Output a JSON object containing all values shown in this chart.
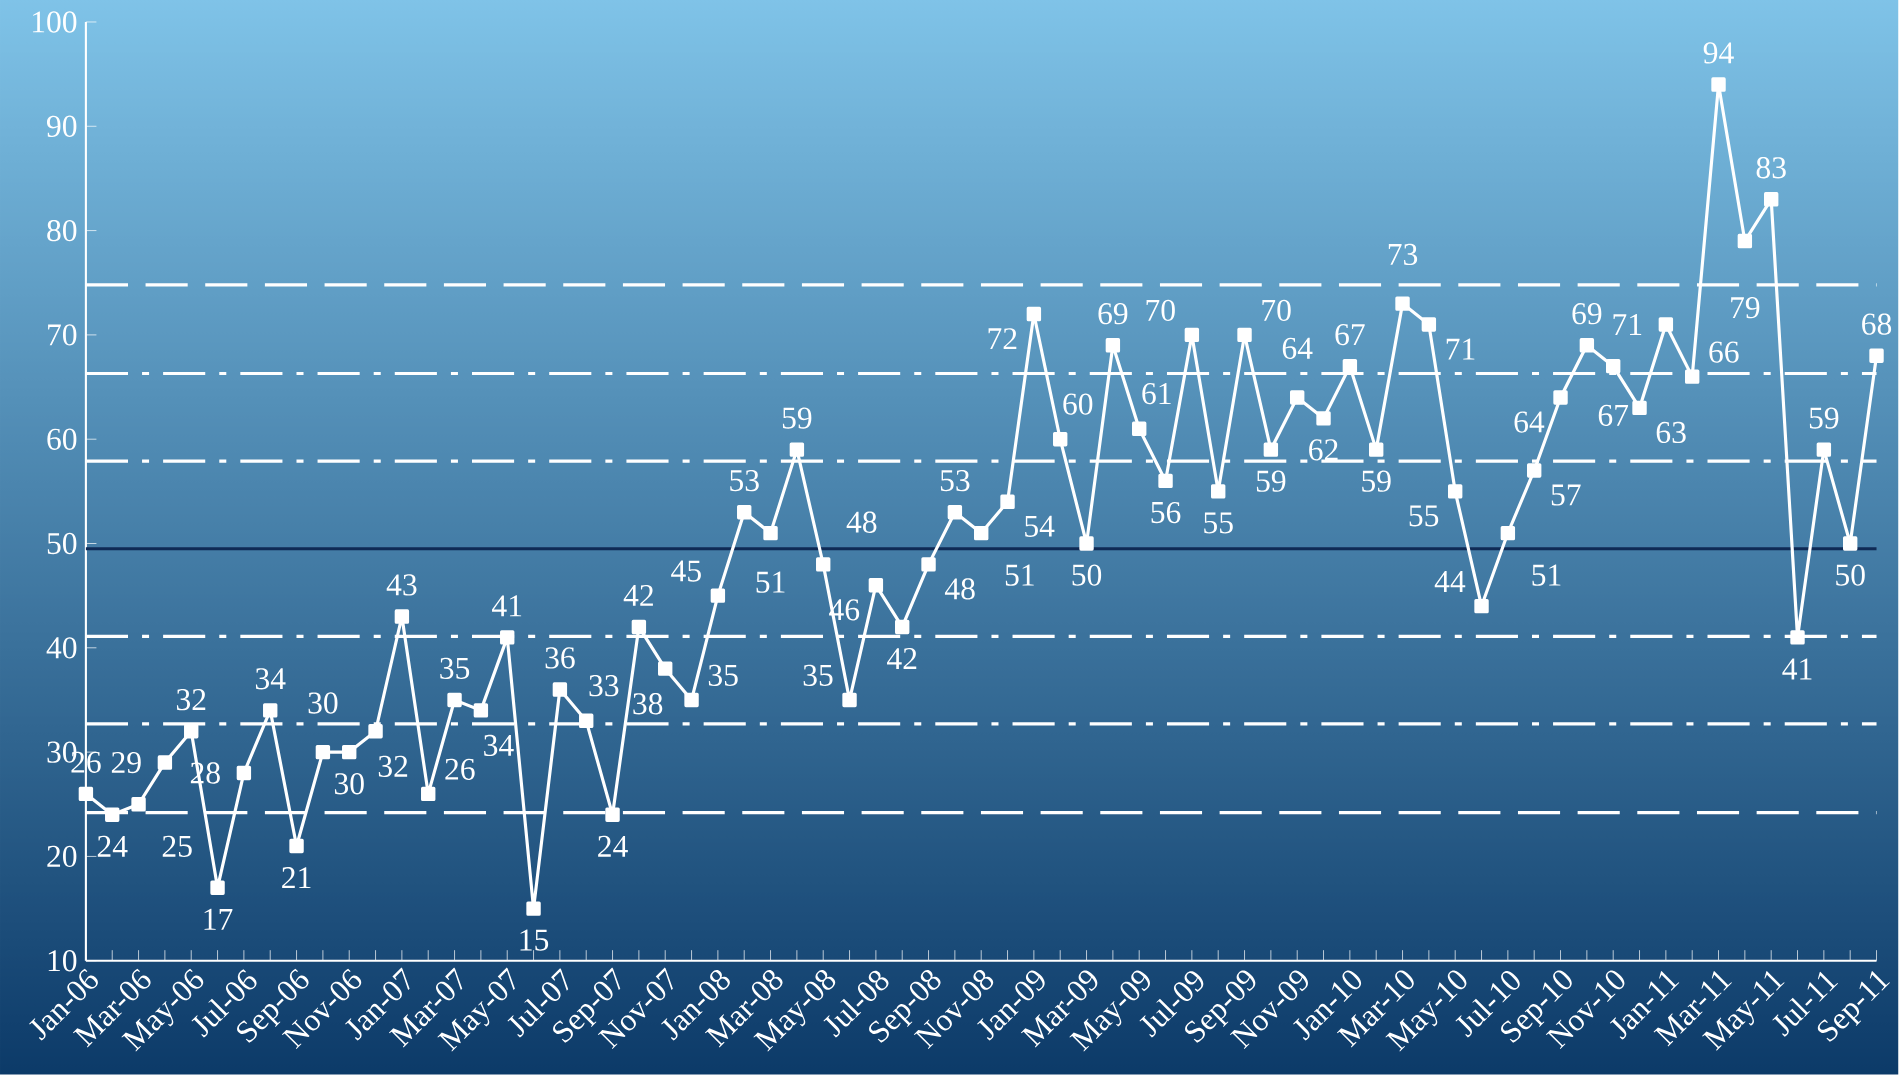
{
  "chart_data": {
    "type": "line",
    "categories": [
      "Jan-06",
      null,
      "Mar-06",
      null,
      "May-06",
      null,
      "Jul-06",
      null,
      "Sep-06",
      null,
      "Nov-06",
      null,
      "Jan-07",
      null,
      "Mar-07",
      null,
      "May-07",
      null,
      "Jul-07",
      null,
      "Sep-07",
      null,
      "Nov-07",
      null,
      "Jan-08",
      null,
      "Mar-08",
      null,
      "May-08",
      null,
      "Jul-08",
      null,
      "Sep-08",
      null,
      "Nov-08",
      null,
      "Jan-09",
      null,
      "Mar-09",
      null,
      "May-09",
      null,
      "Jul-09",
      null,
      "Sep-09",
      null,
      "Nov-09",
      null,
      "Jan-10",
      null,
      "Mar-10",
      null,
      "May-10",
      null,
      "Jul-10",
      null,
      "Sep-10",
      null,
      "Nov-10",
      null,
      "Jan-11",
      null,
      "Mar-11",
      null,
      "May-11",
      null,
      "Jul-11",
      null,
      "Sep-11"
    ],
    "values": [
      26,
      24,
      25,
      29,
      32,
      17,
      28,
      34,
      21,
      30,
      30,
      32,
      43,
      26,
      35,
      34,
      41,
      15,
      36,
      33,
      24,
      42,
      38,
      35,
      45,
      53,
      51,
      59,
      48,
      35,
      46,
      42,
      48,
      53,
      51,
      54,
      72,
      60,
      50,
      69,
      61,
      56,
      70,
      55,
      70,
      59,
      64,
      62,
      67,
      59,
      73,
      71,
      55,
      44,
      51,
      57,
      64,
      69,
      67,
      63,
      71,
      66,
      94,
      79,
      83,
      41,
      59,
      50,
      68
    ],
    "color": "#ffffff",
    "marker": "square",
    "data_labels": true,
    "ylim": [
      10,
      100
    ],
    "yticks": [
      10,
      20,
      30,
      40,
      50,
      60,
      70,
      80,
      90,
      100
    ],
    "ref_lines": [
      {
        "axis": "y",
        "value": 49.5,
        "color": "#0f2a55",
        "line_style": "solid"
      },
      {
        "axis": "y",
        "value": 41.1,
        "color": "#ffffff",
        "line_style": "dashdot"
      },
      {
        "axis": "y",
        "value": 57.9,
        "color": "#ffffff",
        "line_style": "dashdot"
      },
      {
        "axis": "y",
        "value": 32.7,
        "color": "#ffffff",
        "line_style": "dashdot"
      },
      {
        "axis": "y",
        "value": 66.3,
        "color": "#ffffff",
        "line_style": "dashdot"
      },
      {
        "axis": "y",
        "value": 24.2,
        "color": "#ffffff",
        "line_style": "dashed"
      },
      {
        "axis": "y",
        "value": 74.8,
        "color": "#ffffff",
        "line_style": "dashed"
      }
    ],
    "grid": false
  }
}
